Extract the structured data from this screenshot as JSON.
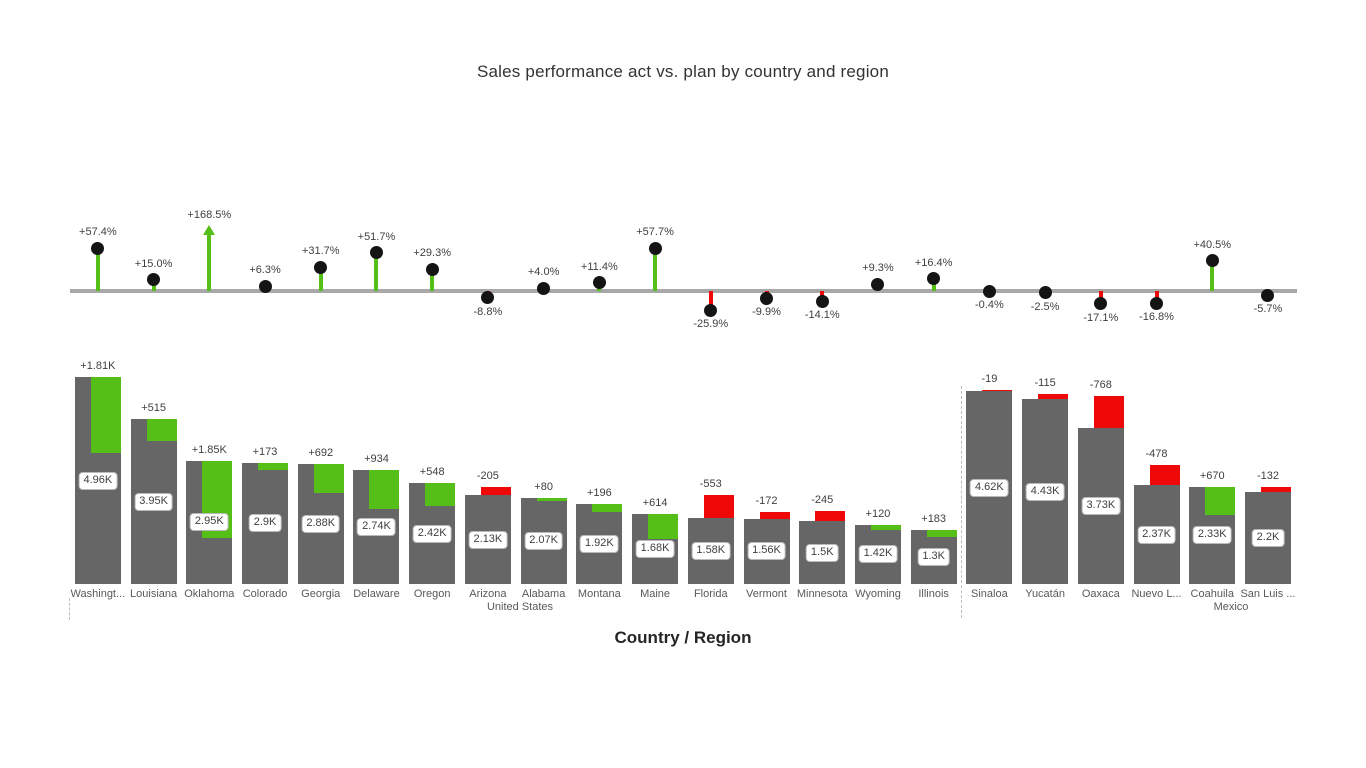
{
  "chart_data": {
    "type": "bar",
    "title": "Sales performance act vs. plan by country and region",
    "xlabel": "Country / Region",
    "grid": false,
    "legend_position": "none",
    "groups": [
      {
        "label": "United States",
        "count": 16
      },
      {
        "label": "Mexico",
        "count": 6
      }
    ],
    "categories": [
      "Washingt...",
      "Louisiana",
      "Oklahoma",
      "Colorado",
      "Georgia",
      "Delaware",
      "Oregon",
      "Arizona",
      "Alabama",
      "Montana",
      "Maine",
      "Florida",
      "Vermont",
      "Minnesota",
      "Wyoming",
      "Illinois",
      "Sinaloa",
      "Yucatán",
      "Oaxaca",
      "Nuevo L...",
      "Coahuila",
      "San Luis ..."
    ],
    "series": [
      {
        "name": "actual",
        "values": [
          4960,
          3950,
          2950,
          2900,
          2880,
          2740,
          2420,
          2130,
          2070,
          1920,
          1680,
          1580,
          1560,
          1500,
          1420,
          1300,
          4620,
          4430,
          3730,
          2370,
          2330,
          2200
        ]
      },
      {
        "name": "variance_vs_plan",
        "values": [
          1810,
          515,
          1850,
          173,
          692,
          934,
          548,
          -205,
          80,
          196,
          614,
          -553,
          -172,
          -245,
          120,
          183,
          -19,
          -115,
          -768,
          -478,
          670,
          -132
        ]
      },
      {
        "name": "variance_pct",
        "values": [
          57.4,
          15.0,
          168.5,
          6.3,
          31.7,
          51.7,
          29.3,
          -8.8,
          4.0,
          11.4,
          57.7,
          -25.9,
          -9.9,
          -14.1,
          9.3,
          16.4,
          -0.4,
          -2.5,
          -17.1,
          -16.8,
          40.5,
          -5.7
        ]
      }
    ],
    "value_labels": [
      "4.96K",
      "3.95K",
      "2.95K",
      "2.9K",
      "2.88K",
      "2.74K",
      "2.42K",
      "2.13K",
      "2.07K",
      "1.92K",
      "1.68K",
      "1.58K",
      "1.56K",
      "1.5K",
      "1.42K",
      "1.3K",
      "4.62K",
      "4.43K",
      "3.73K",
      "2.37K",
      "2.33K",
      "2.2K"
    ],
    "variance_labels": [
      "+1.81K",
      "+515",
      "+1.85K",
      "+173",
      "+692",
      "+934",
      "+548",
      "-205",
      "+80",
      "+196",
      "+614",
      "-553",
      "-172",
      "-245",
      "+120",
      "+183",
      "-19",
      "-115",
      "-768",
      "-478",
      "+670",
      "-132"
    ],
    "variance_pct_labels": [
      "+57.4%",
      "+15.0%",
      "+168.5%",
      "+6.3%",
      "+31.7%",
      "+51.7%",
      "+29.3%",
      "-8.8%",
      "+4.0%",
      "+11.4%",
      "+57.7%",
      "-25.9%",
      "-9.9%",
      "-14.1%",
      "+9.3%",
      "+16.4%",
      "-0.4%",
      "-2.5%",
      "-17.1%",
      "-16.8%",
      "+40.5%",
      "-5.7%"
    ],
    "colors": {
      "bar": "#666666",
      "positive": "#55be17",
      "negative": "#ee0808",
      "baseline": "#a8a8a8",
      "data_label": "#3f3f3f",
      "axis_text": "#595959",
      "pin_head": "#141414"
    }
  }
}
